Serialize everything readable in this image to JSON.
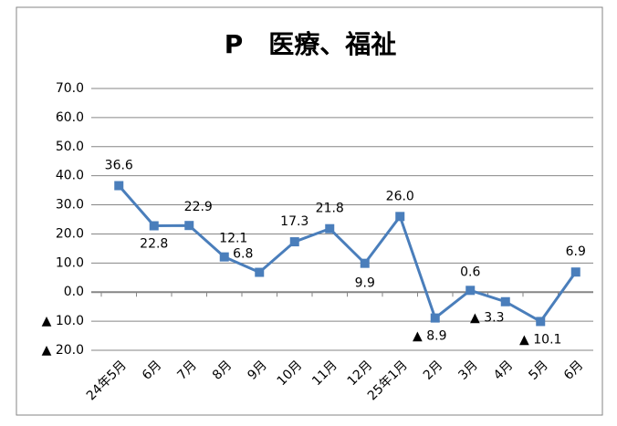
{
  "chart_data": {
    "type": "line",
    "title": "P　医療、福祉",
    "categories": [
      "24年5月",
      "6月",
      "7月",
      "8月",
      "9月",
      "10月",
      "11月",
      "12月",
      "25年1月",
      "2月",
      "3月",
      "4月",
      "5月",
      "6月"
    ],
    "series": [
      {
        "name": "P 医療、福祉",
        "color": "#4a7ebb",
        "values": [
          36.6,
          22.8,
          22.9,
          12.1,
          6.8,
          17.3,
          21.8,
          9.9,
          26.0,
          -8.9,
          0.6,
          -3.3,
          -10.1,
          6.9
        ],
        "value_labels": [
          "36.6",
          "22.8",
          "22.9",
          "12.1",
          "6.8",
          "17.3",
          "21.8",
          "9.9",
          "26.0",
          "▲ 8.9",
          "0.6",
          "▲ 3.3",
          "▲ 10.1",
          "6.9"
        ]
      }
    ],
    "ylim": [
      -20,
      70
    ],
    "yticks": [
      {
        "value": -20,
        "label": "▲ 20.0"
      },
      {
        "value": -10,
        "label": "▲ 10.0"
      },
      {
        "value": 0,
        "label": "0.0"
      },
      {
        "value": 10,
        "label": "10.0"
      },
      {
        "value": 20,
        "label": "20.0"
      },
      {
        "value": 30,
        "label": "30.0"
      },
      {
        "value": 40,
        "label": "40.0"
      },
      {
        "value": 50,
        "label": "50.0"
      },
      {
        "value": 60,
        "label": "60.0"
      },
      {
        "value": 70,
        "label": "70.0"
      }
    ],
    "grid": true
  }
}
